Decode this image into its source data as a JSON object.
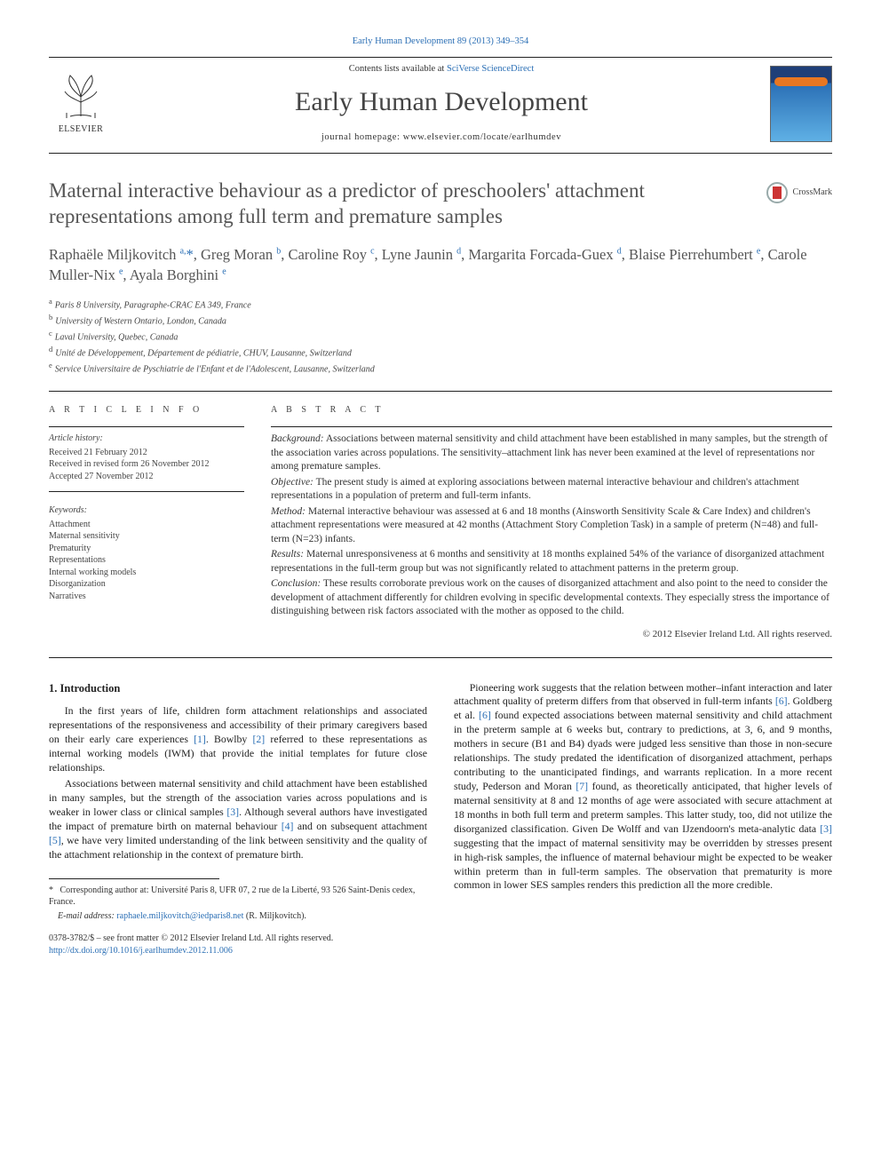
{
  "meta": {
    "top_ref": "Early Human Development 89 (2013) 349–354",
    "avail_prefix": "Contents lists available at ",
    "avail_link": "SciVerse ScienceDirect",
    "journal": "Early Human Development",
    "homepage_label": "journal homepage: www.elsevier.com/locate/earlhumdev",
    "publisher": "ELSEVIER",
    "crossmark": "CrossMark"
  },
  "colors": {
    "link": "#2b6fb5",
    "rule": "#222222",
    "text": "#333333",
    "cover_top": "#1f3f78",
    "cover_bottom": "#5fb0e5",
    "cover_band": "#e87722"
  },
  "fonts": {
    "body_pt": 12,
    "title_pt": 23,
    "journal_pt": 30,
    "authors_pt": 16.5,
    "small_pt": 10
  },
  "title": "Maternal interactive behaviour as a predictor of preschoolers' attachment representations among full term and premature samples",
  "authors_html": "Raphaële Miljkovitch <sup>a,</sup><span class='star'>*</span>, Greg Moran <sup>b</sup>, Caroline Roy <sup>c</sup>, Lyne Jaunin <sup>d</sup>, Margarita Forcada-Guex <sup>d</sup>, Blaise Pierrehumbert <sup>e</sup>, Carole Muller-Nix <sup>e</sup>, Ayala Borghini <sup>e</sup>",
  "affiliations": [
    {
      "tag": "a",
      "text": "Paris 8 University, Paragraphe-CRAC EA 349, France"
    },
    {
      "tag": "b",
      "text": "University of Western Ontario, London, Canada"
    },
    {
      "tag": "c",
      "text": "Laval University, Quebec, Canada"
    },
    {
      "tag": "d",
      "text": "Unité de Développement, Département de pédiatrie, CHUV, Lausanne, Switzerland"
    },
    {
      "tag": "e",
      "text": "Service Universitaire de Pyschiatrie de l'Enfant et de l'Adolescent, Lausanne, Switzerland"
    }
  ],
  "article_info": {
    "heading": "A R T I C L E   I N F O",
    "history_head": "Article history:",
    "received": "Received 21 February 2012",
    "revised": "Received in revised form 26 November 2012",
    "accepted": "Accepted 27 November 2012",
    "keywords_head": "Keywords:",
    "keywords": [
      "Attachment",
      "Maternal sensitivity",
      "Prematurity",
      "Representations",
      "Internal working models",
      "Disorganization",
      "Narratives"
    ]
  },
  "abstract": {
    "heading": "A B S T R A C T",
    "background": "Associations between maternal sensitivity and child attachment have been established in many samples, but the strength of the association varies across populations. The sensitivity–attachment link has never been examined at the level of representations nor among premature samples.",
    "objective": "The present study is aimed at exploring associations between maternal interactive behaviour and children's attachment representations in a population of preterm and full-term infants.",
    "method": "Maternal interactive behaviour was assessed at 6 and 18 months (Ainsworth Sensitivity Scale & Care Index) and children's attachment representations were measured at 42 months (Attachment Story Completion Task) in a sample of preterm (N=48) and full-term (N=23) infants.",
    "results": "Maternal unresponsiveness at 6 months and sensitivity at 18 months explained 54% of the variance of disorganized attachment representations in the full-term group but was not significantly related to attachment patterns in the preterm group.",
    "conclusion": "These results corroborate previous work on the causes of disorganized attachment and also point to the need to consider the development of attachment differently for children evolving in specific developmental contexts. They especially stress the importance of distinguishing between risk factors associated with the mother as opposed to the child.",
    "copyright": "© 2012 Elsevier Ireland Ltd. All rights reserved."
  },
  "labels": {
    "background": "Background:",
    "objective": "Objective:",
    "method": "Method:",
    "results": "Results:",
    "conclusion": "Conclusion:"
  },
  "intro": {
    "heading": "1. Introduction",
    "p1a": "In the first years of life, children form attachment relationships and associated representations of the responsiveness and accessibility of their primary caregivers based on their early care experiences ",
    "r1": "[1]",
    "p1b": ". Bowlby ",
    "r2": "[2]",
    "p1c": " referred to these representations as internal working models (IWM) that provide the initial templates for future close relationships.",
    "p2a": "Associations between maternal sensitivity and child attachment have been established in many samples, but the strength of the association varies across populations and is weaker in lower class or clinical samples ",
    "r3": "[3]",
    "p2b": ". Although several authors have investigated the impact of premature birth on maternal behaviour ",
    "r4": "[4]",
    "p2c": " and on subsequent attachment ",
    "r5": "[5]",
    "p2d": ", we have very limited understanding of the link between sensitivity and the quality of the attachment relationship in the context of premature birth.",
    "p3a": "Pioneering work suggests that the relation between mother–infant interaction and later attachment quality of preterm differs from that observed in full-term infants ",
    "r6a": "[6]",
    "p3b": ". Goldberg et al. ",
    "r6b": "[6]",
    "p3c": " found expected associations between maternal sensitivity and child attachment in the preterm sample at 6 weeks but, contrary to predictions, at 3, 6, and 9 months, mothers in secure (B1 and B4) dyads were judged less sensitive than those in non-secure relationships. The study predated the identification of disorganized attachment, perhaps contributing to the unanticipated findings, and warrants replication. In a more recent study, Pederson and Moran ",
    "r7": "[7]",
    "p3d": " found, as theoretically anticipated, that higher levels of maternal sensitivity at 8 and 12 months of age were associated with secure attachment at 18 months in both full term and preterm samples. This latter study, too, did not utilize the disorganized classification. Given De Wolff and van IJzendoorn's meta-analytic data ",
    "r3b": "[3]",
    "p3e": " suggesting that the impact of maternal sensitivity may be overridden by stresses present in high-risk samples, the influence of maternal behaviour might be expected to be weaker within preterm than in full-term samples. The observation that prematurity is more common in lower SES samples renders this prediction all the more credible."
  },
  "footnotes": {
    "corr": "Corresponding author at: Université Paris 8, UFR 07, 2 rue de la Liberté, 93 526 Saint-Denis cedex, France.",
    "email_label": "E-mail address:",
    "email": "raphaele.miljkovitch@iedparis8.net",
    "email_tail": " (R. Miljkovitch)."
  },
  "bottom": {
    "issn": "0378-3782/$ – see front matter © 2012 Elsevier Ireland Ltd. All rights reserved.",
    "doi": "http://dx.doi.org/10.1016/j.earlhumdev.2012.11.006"
  }
}
